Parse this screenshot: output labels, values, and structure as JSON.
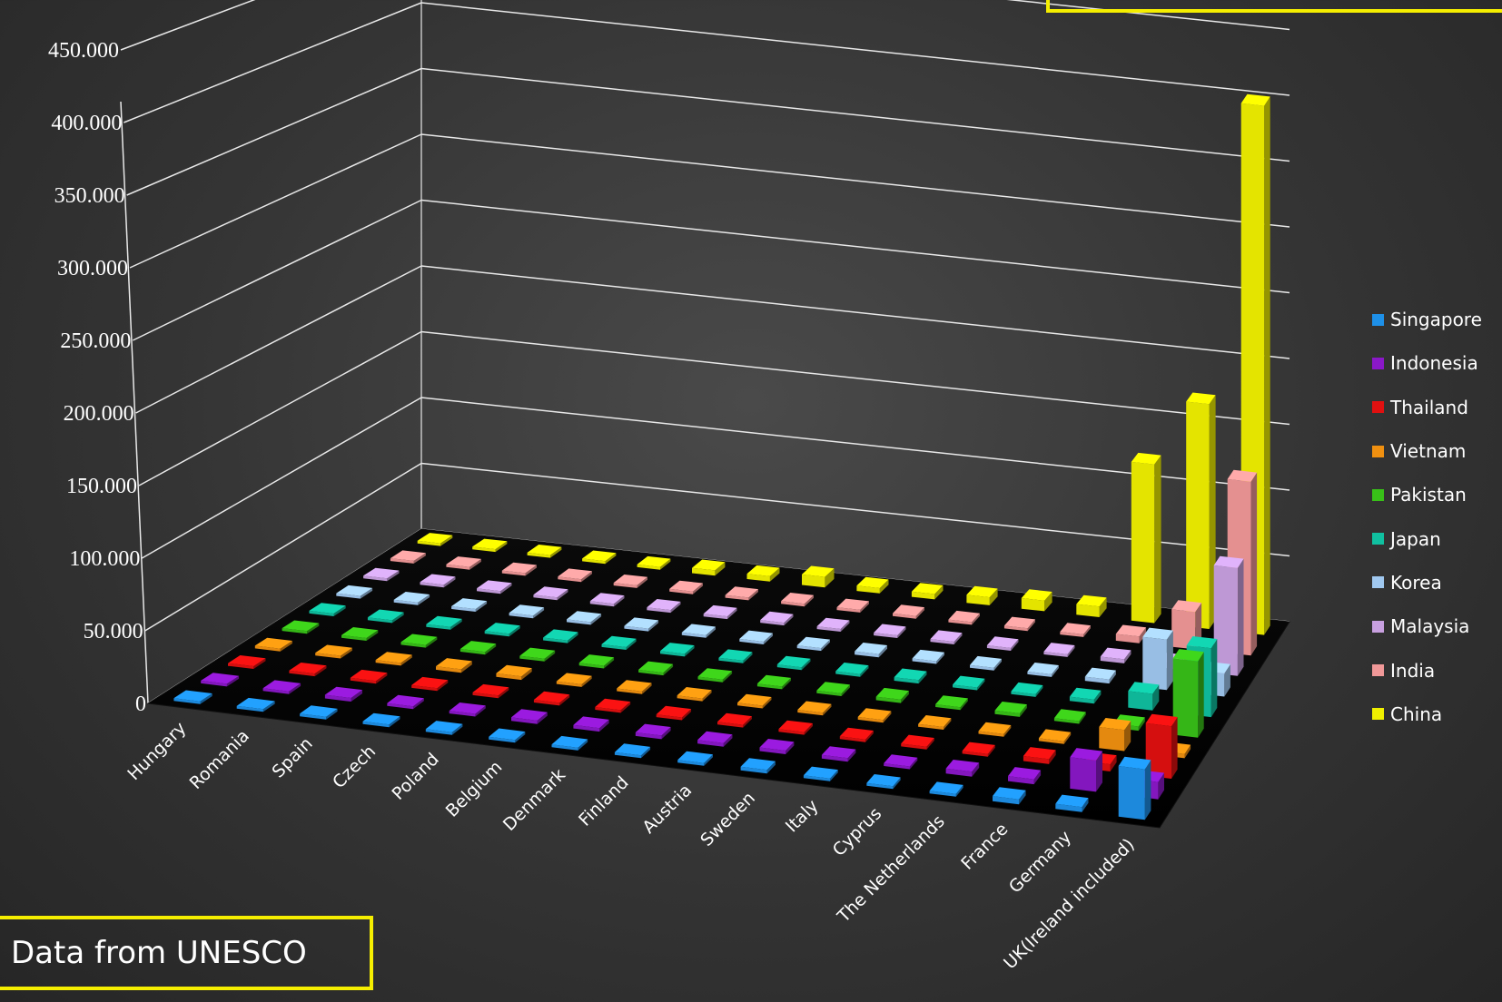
{
  "chart_data": {
    "type": "bar",
    "title": "",
    "xlabel": "",
    "ylabel": "",
    "ylim": [
      0,
      450000
    ],
    "ytick_labels": [
      "0",
      "50.000",
      "100.000",
      "150.000",
      "200.000",
      "250.000",
      "300.000",
      "350.000",
      "400.000",
      "450.000"
    ],
    "categories": [
      "Hungary",
      "Romania",
      "Spain",
      "Czech",
      "Poland",
      "Belgium",
      "Denmark",
      "Finland",
      "Austria",
      "Sweden",
      "Italy",
      "Cyprus",
      "The Netherlands",
      "France",
      "Germany",
      "UK(Ireland included)"
    ],
    "legend_position": "right",
    "grid": true,
    "series": [
      {
        "name": "Singapore",
        "color": "#1e90e8",
        "values": [
          600,
          600,
          700,
          600,
          700,
          1000,
          1000,
          700,
          1000,
          2500,
          1500,
          900,
          1800,
          3500,
          3500,
          35000
        ]
      },
      {
        "name": "Indonesia",
        "color": "#8a18c8",
        "values": [
          500,
          500,
          2500,
          700,
          700,
          2500,
          2500,
          2500,
          2500,
          2500,
          2500,
          700,
          3500,
          3500,
          22000,
          12000
        ]
      },
      {
        "name": "Thailand",
        "color": "#e01010",
        "values": [
          1000,
          1000,
          1000,
          1000,
          1000,
          1000,
          1000,
          1000,
          1000,
          1000,
          1000,
          1000,
          1000,
          3500,
          5000,
          37000
        ]
      },
      {
        "name": "Vietnam",
        "color": "#f09010",
        "values": [
          1000,
          1000,
          1000,
          2500,
          2500,
          1000,
          1000,
          1000,
          1000,
          1000,
          1000,
          1000,
          1000,
          1000,
          15000,
          3000
        ]
      },
      {
        "name": "Pakistan",
        "color": "#38c018",
        "values": [
          500,
          500,
          500,
          500,
          500,
          500,
          500,
          500,
          500,
          1000,
          2500,
          1000,
          2500,
          1000,
          3000,
          55000
        ]
      },
      {
        "name": "Japan",
        "color": "#10c0a0",
        "values": [
          1000,
          1000,
          1000,
          1000,
          1000,
          1000,
          1000,
          1000,
          1000,
          1000,
          2500,
          1000,
          1000,
          3000,
          12000,
          50000
        ]
      },
      {
        "name": "Korea",
        "color": "#a0c8f0",
        "values": [
          1000,
          1000,
          1000,
          1000,
          1000,
          1000,
          1000,
          1000,
          1000,
          2500,
          1000,
          1000,
          1000,
          3000,
          37000,
          17000
        ]
      },
      {
        "name": "Malaysia",
        "color": "#c8a0e0",
        "values": [
          500,
          500,
          500,
          500,
          500,
          500,
          500,
          500,
          500,
          500,
          500,
          500,
          500,
          3000,
          4000,
          80000
        ]
      },
      {
        "name": "India",
        "color": "#f09898",
        "values": [
          1000,
          1000,
          1000,
          1000,
          1000,
          1000,
          1000,
          1000,
          2000,
          2000,
          2000,
          1000,
          1000,
          5000,
          28000,
          130000
        ]
      },
      {
        "name": "China",
        "color": "#f0f000",
        "values": [
          2000,
          2000,
          2000,
          2000,
          2000,
          4000,
          4000,
          8000,
          4000,
          4000,
          6000,
          8000,
          8000,
          120000,
          170000,
          400000
        ]
      }
    ]
  },
  "source_label": "Data from UNESCO"
}
